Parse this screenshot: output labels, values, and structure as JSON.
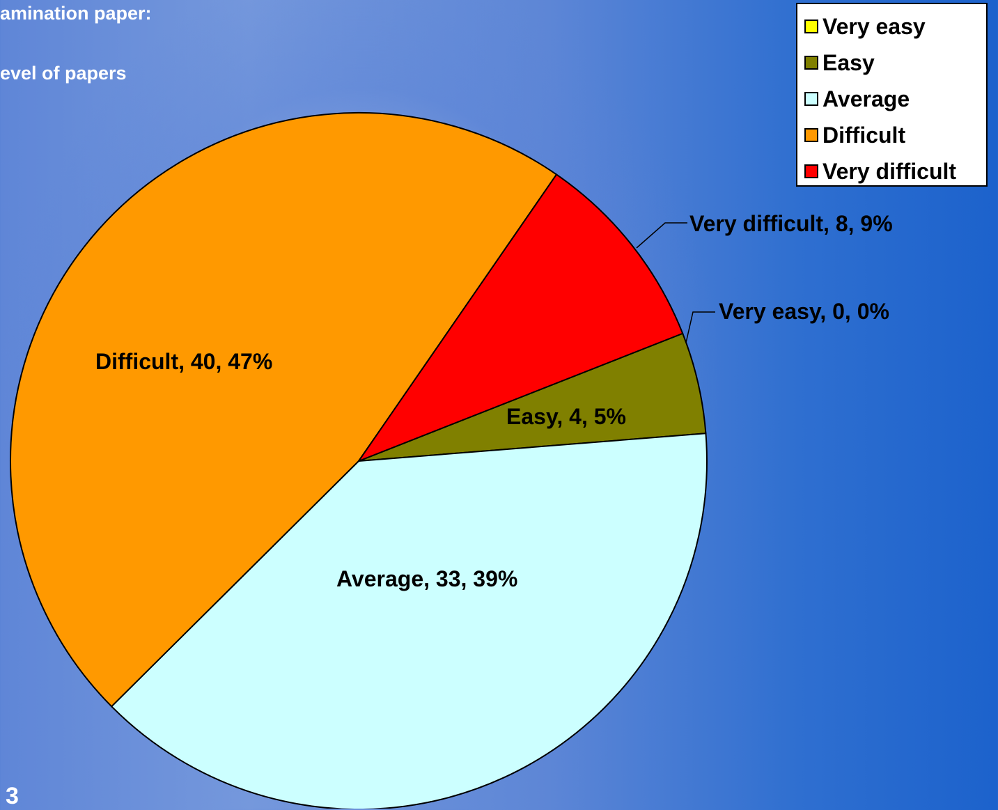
{
  "slide": {
    "title_line1": "amination paper:",
    "title_line2": "evel of papers",
    "slide_number": "3"
  },
  "chart_data": {
    "type": "pie",
    "title": "",
    "slices": [
      {
        "name": "Very easy",
        "value": 0,
        "percent": 0,
        "color": "#FFFF00",
        "label": "Very easy, 0, 0%"
      },
      {
        "name": "Easy",
        "value": 4,
        "percent": 5,
        "color": "#808000",
        "label": "Easy, 4, 5%"
      },
      {
        "name": "Average",
        "value": 33,
        "percent": 39,
        "color": "#CCFFFF",
        "label": "Average, 33, 39%"
      },
      {
        "name": "Difficult",
        "value": 40,
        "percent": 47,
        "color": "#FF9900",
        "label": "Difficult, 40, 47%"
      },
      {
        "name": "Very difficult",
        "value": 8,
        "percent": 9,
        "color": "#FF0000",
        "label": "Very difficult, 8, 9%"
      }
    ],
    "start_angle_deg": 21.5,
    "direction": "clockwise",
    "legend": {
      "placement": "top-right",
      "entries": [
        "Very easy",
        "Easy",
        "Average",
        "Difficult",
        "Very difficult"
      ]
    }
  }
}
